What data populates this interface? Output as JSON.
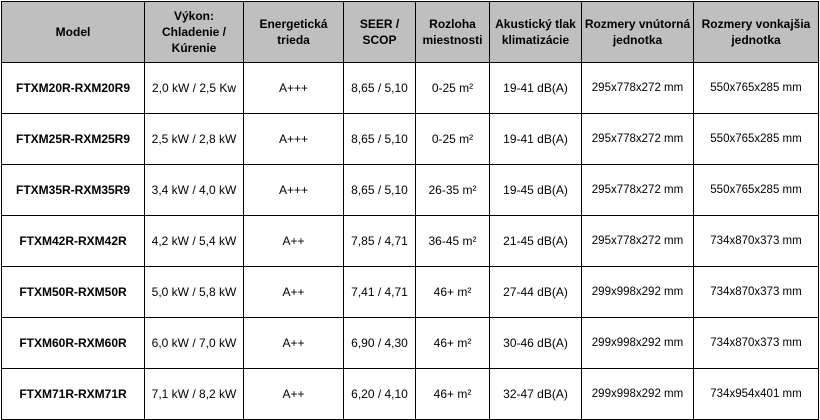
{
  "table": {
    "headers": [
      "Model",
      "Výkon: Chladenie / Kúrenie",
      "Energetická trieda",
      "SEER / SCOP",
      "Rozloha miestnosti",
      "Akustický tlak klimatizácie",
      "Rozmery vnútorná jednotka",
      "Rozmery vonkajšia jednotka"
    ],
    "rows": [
      {
        "model": "FTXM20R-RXM20R9",
        "power": "2,0 kW / 2,5 Kw",
        "energy_class": "A+++",
        "seer_scop": "8,65 / 5,10",
        "room_area": "0-25 m²",
        "noise": "19-41 dB(A)",
        "indoor_dims": "295x778x272 mm",
        "outdoor_dims": "550x765x285 mm"
      },
      {
        "model": "FTXM25R-RXM25R9",
        "power": "2,5 kW / 2,8 kW",
        "energy_class": "A+++",
        "seer_scop": "8,65 / 5,10",
        "room_area": "0-25 m²",
        "noise": "19-41 dB(A)",
        "indoor_dims": "295x778x272 mm",
        "outdoor_dims": "550x765x285 mm"
      },
      {
        "model": "FTXM35R-RXM35R9",
        "power": "3,4 kW / 4,0 kW",
        "energy_class": "A+++",
        "seer_scop": "8,65 / 5,10",
        "room_area": "26-35 m²",
        "noise": "19-45 dB(A)",
        "indoor_dims": "295x778x272 mm",
        "outdoor_dims": "550x765x285 mm"
      },
      {
        "model": "FTXM42R-RXM42R",
        "power": "4,2 kW / 5,4 kW",
        "energy_class": "A++",
        "seer_scop": "7,85 / 4,71",
        "room_area": "36-45 m²",
        "noise": "21-45 dB(A)",
        "indoor_dims": "295x778x272 mm",
        "outdoor_dims": "734x870x373 mm"
      },
      {
        "model": "FTXM50R-RXM50R",
        "power": "5,0 kW / 5,8 kW",
        "energy_class": "A++",
        "seer_scop": "7,41 / 4,71",
        "room_area": "46+ m²",
        "noise": "27-44 dB(A)",
        "indoor_dims": "299x998x292 mm",
        "outdoor_dims": "734x870x373 mm"
      },
      {
        "model": "FTXM60R-RXM60R",
        "power": "6,0 kW / 7,0 kW",
        "energy_class": "A++",
        "seer_scop": "6,90 / 4,30",
        "room_area": "46+ m²",
        "noise": "30-46 dB(A)",
        "indoor_dims": "299x998x292 mm",
        "outdoor_dims": "734x870x373 mm"
      },
      {
        "model": "FTXM71R-RXM71R",
        "power": "7,1 kW / 8,2 kW",
        "energy_class": "A++",
        "seer_scop": "6,20 / 4,10",
        "room_area": "46+ m²",
        "noise": "32-47 dB(A)",
        "indoor_dims": "299x998x292 mm",
        "outdoor_dims": "734x954x401 mm"
      }
    ]
  }
}
